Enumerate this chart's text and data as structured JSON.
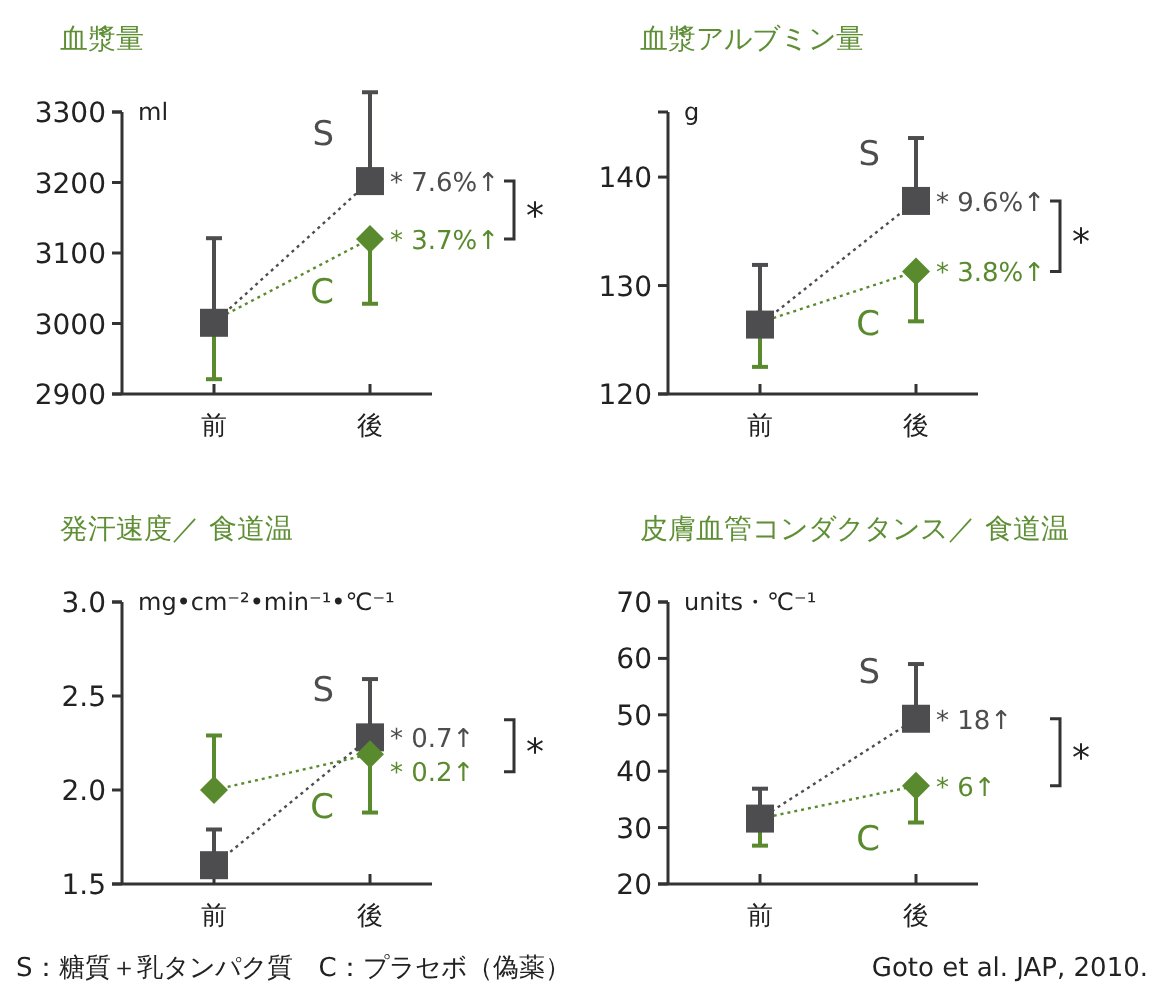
{
  "chart_data": [
    {
      "type": "line",
      "title": "血漿量",
      "ylabel": "ml",
      "categories": [
        "前",
        "後"
      ],
      "ylim": [
        2900,
        3300
      ],
      "yticks": [
        2900,
        3000,
        3100,
        3200,
        3300
      ],
      "series": [
        {
          "name": "C",
          "color": "#5a8a2e",
          "marker": "diamond",
          "line_style": "dotted",
          "values": [
            3004,
            3120
          ],
          "errors": [
            [
              2921,
              3004
            ],
            [
              3028,
              3120
            ]
          ]
        },
        {
          "name": "S",
          "color": "#4d4d4f",
          "marker": "square",
          "line_style": "dotted",
          "values": [
            3001,
            3202
          ],
          "errors": [
            [
              3001,
              3121
            ],
            [
              3202,
              3328
            ]
          ]
        }
      ],
      "annotations": [
        {
          "text": "* 7.6%↑",
          "x": "後",
          "y": 3202
        },
        {
          "text": "* 3.7%↑",
          "x": "後",
          "y": 3120
        },
        "*"
      ]
    },
    {
      "type": "line",
      "title": "血漿アルブミン量",
      "ylabel": "g",
      "categories": [
        "前",
        "後"
      ],
      "ylim": [
        120,
        146
      ],
      "yticks": [
        120,
        130,
        140
      ],
      "series": [
        {
          "name": "C",
          "color": "#5a8a2e",
          "marker": "diamond",
          "line_style": "dotted",
          "values": [
            126.6,
            131.3
          ],
          "errors": [
            [
              122.5,
              126.6
            ],
            [
              126.7,
              131.3
            ]
          ]
        },
        {
          "name": "S",
          "color": "#4d4d4f",
          "marker": "square",
          "line_style": "dotted",
          "values": [
            126.4,
            137.8
          ],
          "errors": [
            [
              126.4,
              131.9
            ],
            [
              137.8,
              143.6
            ]
          ]
        }
      ],
      "annotations": [
        {
          "text": "* 9.6%↑",
          "x": "後",
          "y": 137.8
        },
        {
          "text": "* 3.8%↑",
          "x": "後",
          "y": 131.3
        },
        "*"
      ]
    },
    {
      "type": "line",
      "title": "発汗速度／ 食道温",
      "ylabel": "mg•cm⁻²•min⁻¹•℃⁻¹",
      "categories": [
        "前",
        "後"
      ],
      "ylim": [
        1.5,
        3.0
      ],
      "yticks": [
        {
          "value": 1.5,
          "label": "1.5"
        },
        {
          "value": 2.0,
          "label": "2.0"
        },
        {
          "value": 2.5,
          "label": "2.5"
        },
        {
          "value": 3.0,
          "label": "3.0"
        }
      ],
      "series": [
        {
          "name": "S",
          "color": "#4d4d4f",
          "marker": "square",
          "line_style": "dotted",
          "values": [
            1.6,
            2.28
          ],
          "errors": [
            [
              1.6,
              1.79
            ],
            [
              2.28,
              2.59
            ]
          ]
        },
        {
          "name": "C",
          "color": "#5a8a2e",
          "marker": "diamond",
          "line_style": "dotted",
          "values": [
            2.0,
            2.19
          ],
          "errors": [
            [
              2.0,
              2.29
            ],
            [
              1.88,
              2.19
            ]
          ]
        }
      ],
      "annotations": [
        {
          "text": "* 0.7↑",
          "x": "後",
          "y": 2.28
        },
        {
          "text": "* 0.2↑",
          "x": "後",
          "y": 2.19
        },
        "*",
        "S：糖質＋乳タンパク質　C：プラセボ（偽薬）"
      ]
    },
    {
      "type": "line",
      "title": "皮膚血管コンダクタンス／ 食道温",
      "ylabel": "units・℃⁻¹",
      "categories": [
        "前",
        "後"
      ],
      "ylim": [
        20,
        70
      ],
      "yticks": [
        20,
        30,
        40,
        50,
        60,
        70
      ],
      "series": [
        {
          "name": "C",
          "color": "#5a8a2e",
          "marker": "diamond",
          "line_style": "dotted",
          "values": [
            31.6,
            37.4
          ],
          "errors": [
            [
              26.8,
              31.6
            ],
            [
              30.9,
              37.4
            ]
          ]
        },
        {
          "name": "S",
          "color": "#4d4d4f",
          "marker": "square",
          "line_style": "dotted",
          "values": [
            31.6,
            49.3
          ],
          "errors": [
            [
              31.6,
              36.9
            ],
            [
              49.3,
              59.0
            ]
          ]
        }
      ],
      "annotations": [
        {
          "text": "* 18↑",
          "x": "後",
          "y": 49.3
        },
        {
          "text": "* 6↑",
          "x": "後",
          "y": 37.4
        },
        "*",
        "Goto et al. JAP, 2010."
      ]
    }
  ]
}
